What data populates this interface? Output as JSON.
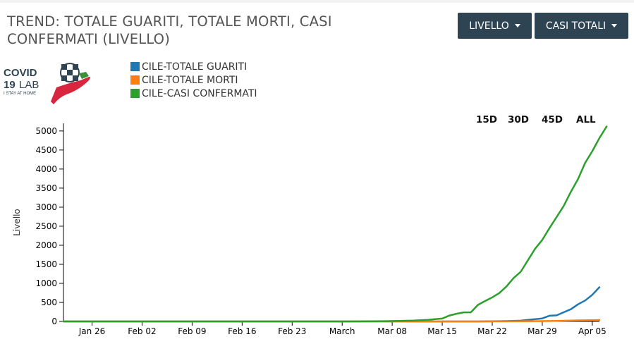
{
  "header": {
    "title": "TREND: TOTALE GUARITI, TOTALE MORTI, CASI CONFERMATI (LIVELLO)",
    "dropdown_level": "LIVELLO",
    "dropdown_cases": "CASI TOTALI"
  },
  "logo": {
    "text_line1": "COVID",
    "text_line2a": "19",
    "text_line2b": "LAB",
    "tagline": "I STAY AT HOME"
  },
  "range_buttons": [
    "15D",
    "30D",
    "45D",
    "ALL"
  ],
  "colors": {
    "guariti": "#1f77b4",
    "morti": "#ff7f0e",
    "confermati": "#2ca02c",
    "header_button": "#2e4453"
  },
  "chart_data": {
    "type": "line",
    "ylabel": "Livello",
    "xlabel": "",
    "ylim": [
      0,
      5200
    ],
    "y_ticks": [
      0,
      500,
      1000,
      1500,
      2000,
      2500,
      3000,
      3500,
      4000,
      4500,
      5000
    ],
    "x_start": "2020-01-22",
    "x_end": "2020-04-06",
    "x_ticks": [
      {
        "date": "2020-01-26",
        "label": "Jan 26"
      },
      {
        "date": "2020-02-02",
        "label": "Feb 02"
      },
      {
        "date": "2020-02-09",
        "label": "Feb 09"
      },
      {
        "date": "2020-02-16",
        "label": "Feb 16"
      },
      {
        "date": "2020-02-23",
        "label": "Feb 23"
      },
      {
        "date": "2020-03-01",
        "label": "March"
      },
      {
        "date": "2020-03-08",
        "label": "Mar 08"
      },
      {
        "date": "2020-03-15",
        "label": "Mar 15"
      },
      {
        "date": "2020-03-22",
        "label": "Mar 22"
      },
      {
        "date": "2020-03-29",
        "label": "Mar 29"
      },
      {
        "date": "2020-04-05",
        "label": "Apr 05"
      }
    ],
    "series": [
      {
        "name": "CILE-TOTALE GUARITI",
        "key": "guariti",
        "points": [
          [
            "2020-01-22",
            0
          ],
          [
            "2020-03-15",
            0
          ],
          [
            "2020-03-20",
            0
          ],
          [
            "2020-03-22",
            5
          ],
          [
            "2020-03-24",
            10
          ],
          [
            "2020-03-26",
            20
          ],
          [
            "2020-03-27",
            40
          ],
          [
            "2020-03-28",
            60
          ],
          [
            "2020-03-29",
            80
          ],
          [
            "2020-03-30",
            150
          ],
          [
            "2020-03-31",
            160
          ],
          [
            "2020-04-01",
            240
          ],
          [
            "2020-04-02",
            320
          ],
          [
            "2020-04-03",
            450
          ],
          [
            "2020-04-04",
            550
          ],
          [
            "2020-04-05",
            700
          ],
          [
            "2020-04-06",
            900
          ]
        ]
      },
      {
        "name": "CILE-TOTALE MORTI",
        "key": "morti",
        "points": [
          [
            "2020-01-22",
            0
          ],
          [
            "2020-03-20",
            0
          ],
          [
            "2020-03-22",
            1
          ],
          [
            "2020-03-24",
            2
          ],
          [
            "2020-03-26",
            4
          ],
          [
            "2020-03-28",
            8
          ],
          [
            "2020-03-30",
            12
          ],
          [
            "2020-04-01",
            18
          ],
          [
            "2020-04-03",
            27
          ],
          [
            "2020-04-05",
            34
          ],
          [
            "2020-04-06",
            37
          ]
        ]
      },
      {
        "name": "CILE-CASI CONFERMATI",
        "key": "confermati",
        "points": [
          [
            "2020-01-22",
            0
          ],
          [
            "2020-03-02",
            0
          ],
          [
            "2020-03-03",
            1
          ],
          [
            "2020-03-07",
            7
          ],
          [
            "2020-03-09",
            13
          ],
          [
            "2020-03-11",
            23
          ],
          [
            "2020-03-13",
            43
          ],
          [
            "2020-03-14",
            61
          ],
          [
            "2020-03-15",
            75
          ],
          [
            "2020-03-16",
            155
          ],
          [
            "2020-03-17",
            201
          ],
          [
            "2020-03-18",
            238
          ],
          [
            "2020-03-19",
            238
          ],
          [
            "2020-03-20",
            434
          ],
          [
            "2020-03-21",
            537
          ],
          [
            "2020-03-22",
            632
          ],
          [
            "2020-03-23",
            746
          ],
          [
            "2020-03-24",
            922
          ],
          [
            "2020-03-25",
            1142
          ],
          [
            "2020-03-26",
            1306
          ],
          [
            "2020-03-27",
            1610
          ],
          [
            "2020-03-28",
            1909
          ],
          [
            "2020-03-29",
            2139
          ],
          [
            "2020-03-30",
            2449
          ],
          [
            "2020-03-31",
            2738
          ],
          [
            "2020-04-01",
            3031
          ],
          [
            "2020-04-02",
            3404
          ],
          [
            "2020-04-03",
            3737
          ],
          [
            "2020-04-04",
            4161
          ],
          [
            "2020-04-05",
            4471
          ],
          [
            "2020-04-06",
            4815
          ],
          [
            "2020-04-07",
            5116
          ]
        ]
      }
    ]
  }
}
